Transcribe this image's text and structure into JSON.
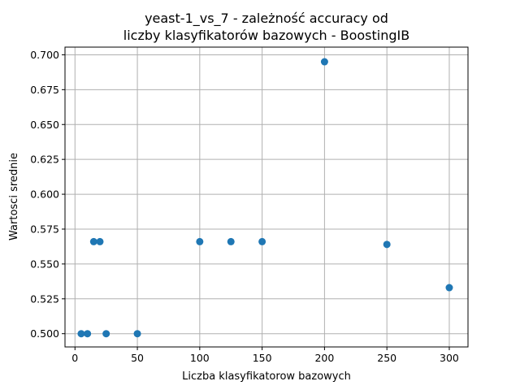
{
  "chart_data": {
    "type": "scatter",
    "title_lines": [
      "yeast-1_vs_7 - zależność accuracy od",
      "liczby klasyfikatorów bazowych - BoostingIB"
    ],
    "xlabel": "Liczba klasyfikatorow bazowych",
    "ylabel": "Wartosci srednie",
    "xlim": [
      -8,
      315
    ],
    "ylim": [
      0.4905,
      0.7055
    ],
    "xticks": [
      0,
      50,
      100,
      150,
      200,
      250,
      300
    ],
    "xtick_labels": [
      "0",
      "50",
      "100",
      "150",
      "200",
      "250",
      "300"
    ],
    "yticks": [
      0.5,
      0.525,
      0.55,
      0.575,
      0.6,
      0.625,
      0.65,
      0.675,
      0.7
    ],
    "ytick_labels": [
      "0.500",
      "0.525",
      "0.550",
      "0.575",
      "0.600",
      "0.625",
      "0.650",
      "0.675",
      "0.700"
    ],
    "grid": true,
    "marker_color": "#1f77b4",
    "points": [
      {
        "x": 5,
        "y": 0.5
      },
      {
        "x": 10,
        "y": 0.5
      },
      {
        "x": 15,
        "y": 0.566
      },
      {
        "x": 20,
        "y": 0.566
      },
      {
        "x": 25,
        "y": 0.5
      },
      {
        "x": 50,
        "y": 0.5
      },
      {
        "x": 100,
        "y": 0.566
      },
      {
        "x": 125,
        "y": 0.566
      },
      {
        "x": 150,
        "y": 0.566
      },
      {
        "x": 200,
        "y": 0.695
      },
      {
        "x": 250,
        "y": 0.564
      },
      {
        "x": 300,
        "y": 0.533
      }
    ]
  }
}
